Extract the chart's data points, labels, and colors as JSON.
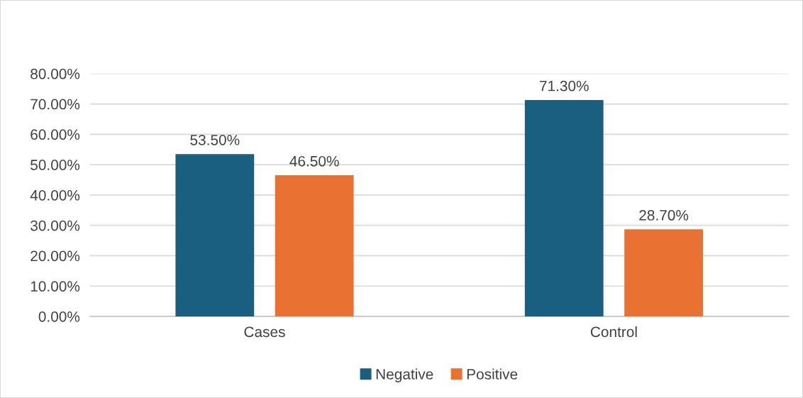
{
  "chart_data": {
    "type": "bar",
    "categories": [
      "Cases",
      "Control"
    ],
    "series": [
      {
        "name": "Negative",
        "color": "#1a5e80",
        "values": [
          53.5,
          71.3
        ],
        "value_labels": [
          "53.50%",
          "71.30%"
        ]
      },
      {
        "name": "Positive",
        "color": "#e97132",
        "values": [
          46.5,
          28.7
        ],
        "value_labels": [
          "46.50%",
          "28.70%"
        ]
      }
    ],
    "ylim": [
      0,
      80
    ],
    "yticks": [
      {
        "value": 0,
        "label": "0.00%"
      },
      {
        "value": 10,
        "label": "10.00%"
      },
      {
        "value": 20,
        "label": "20.00%"
      },
      {
        "value": 30,
        "label": "30.00%"
      },
      {
        "value": 40,
        "label": "40.00%"
      },
      {
        "value": 50,
        "label": "50.00%"
      },
      {
        "value": 60,
        "label": "60.00%"
      },
      {
        "value": 70,
        "label": "70.00%"
      },
      {
        "value": 80,
        "label": "80.00%"
      }
    ],
    "grid": "y",
    "legend": "bottom"
  }
}
